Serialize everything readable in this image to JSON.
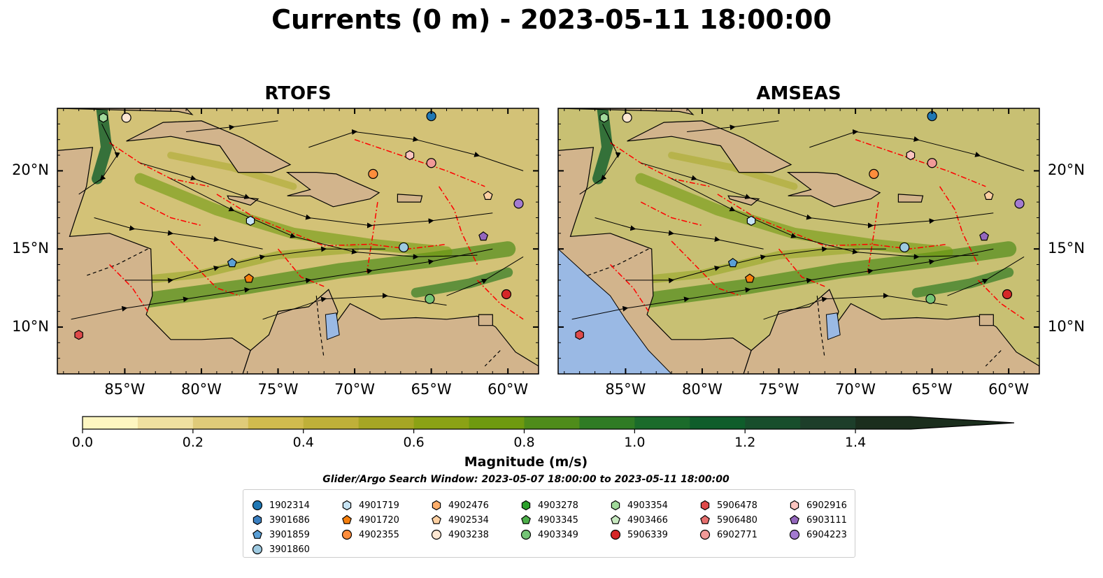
{
  "title": "Currents (0 m) - 2023-05-11 18:00:00",
  "panels": [
    {
      "name": "RTOFS",
      "ocean_color": "#d3c277",
      "extra_region": false
    },
    {
      "name": "AMSEAS",
      "ocean_color": "#c8c073",
      "extra_region": true
    }
  ],
  "map": {
    "lon_range": [
      -89.4,
      -58.0
    ],
    "lat_range": [
      7.0,
      24.0
    ],
    "lon_ticks": [
      "85°W",
      "80°W",
      "75°W",
      "70°W",
      "65°W",
      "60°W"
    ],
    "lat_ticks": [
      "20°N",
      "15°N",
      "10°N"
    ],
    "land_color": "#d2b48c",
    "water_outside_color": "#9ab9e4",
    "eez_line_color": "#ff0000"
  },
  "colorbar": {
    "label": "Magnitude (m/s)",
    "ticks": [
      "0.0",
      "0.2",
      "0.4",
      "0.6",
      "0.8",
      "1.0",
      "1.2",
      "1.4"
    ],
    "min": 0.0,
    "max": 1.5,
    "extend": "max",
    "colors": [
      "#fdf6c1",
      "#efe0a0",
      "#dfcb79",
      "#d1bb4e",
      "#bfb039",
      "#a6a624",
      "#8ba215",
      "#6f9a0f",
      "#4f8c1a",
      "#2f7b24",
      "#1b6b2b",
      "#0f5d2b",
      "#184e2c",
      "#1d3e2a",
      "#1b2e1d"
    ]
  },
  "search_window": "Glider/Argo Search Window: 2023-05-07 18:00:00 to 2023-05-11 18:00:00",
  "legend": [
    {
      "label": "1902314",
      "marker": "circle",
      "color": "#1f77b4",
      "lon": -65.0,
      "lat": 23.5
    },
    {
      "label": "3901686",
      "marker": "hexagon",
      "color": "#3a7fc0",
      "lon": null,
      "lat": null
    },
    {
      "label": "3901859",
      "marker": "pentagon",
      "color": "#5a9fd6",
      "lon": -78.0,
      "lat": 14.1
    },
    {
      "label": "3901860",
      "marker": "circle",
      "color": "#9ecae1",
      "lon": -66.8,
      "lat": 15.1
    },
    {
      "label": "4901719",
      "marker": "hexagon",
      "color": "#c6e3f3",
      "lon": -76.8,
      "lat": 16.8
    },
    {
      "label": "4901720",
      "marker": "pentagon",
      "color": "#f57f0e",
      "lon": -76.9,
      "lat": 13.1
    },
    {
      "label": "4902355",
      "marker": "circle",
      "color": "#fd8d3c",
      "lon": -68.8,
      "lat": 19.8
    },
    {
      "label": "4902476",
      "marker": "hexagon",
      "color": "#fdae6b",
      "lon": null,
      "lat": null
    },
    {
      "label": "4902534",
      "marker": "pentagon",
      "color": "#fdd0a2",
      "lon": -61.3,
      "lat": 18.4
    },
    {
      "label": "4903238",
      "marker": "circle",
      "color": "#fde7d2",
      "lon": -84.9,
      "lat": 23.4
    },
    {
      "label": "4903278",
      "marker": "hexagon",
      "color": "#2ca02c",
      "lon": null,
      "lat": null
    },
    {
      "label": "4903345",
      "marker": "pentagon",
      "color": "#4daf4a",
      "lon": null,
      "lat": null
    },
    {
      "label": "4903349",
      "marker": "circle",
      "color": "#74c476",
      "lon": -65.1,
      "lat": 11.8
    },
    {
      "label": "4903354",
      "marker": "hexagon",
      "color": "#a1d99b",
      "lon": -86.4,
      "lat": 23.4
    },
    {
      "label": "4903466",
      "marker": "pentagon",
      "color": "#c7e9c0",
      "lon": null,
      "lat": null
    },
    {
      "label": "5906339",
      "marker": "circle",
      "color": "#d62728",
      "lon": -60.1,
      "lat": 12.1
    },
    {
      "label": "5906478",
      "marker": "hexagon",
      "color": "#de4a4a",
      "lon": -88.0,
      "lat": 9.5
    },
    {
      "label": "5906480",
      "marker": "pentagon",
      "color": "#e7706f",
      "lon": null,
      "lat": null
    },
    {
      "label": "6902771",
      "marker": "circle",
      "color": "#f19a98",
      "lon": -65.0,
      "lat": 20.5
    },
    {
      "label": "6902916",
      "marker": "hexagon",
      "color": "#fcc5c0",
      "lon": -66.4,
      "lat": 21.0
    },
    {
      "label": "6903111",
      "marker": "pentagon",
      "color": "#9467bd",
      "lon": -61.6,
      "lat": 15.8
    },
    {
      "label": "6904223",
      "marker": "circle",
      "color": "#a37bd0",
      "lon": -59.3,
      "lat": 17.9
    }
  ]
}
